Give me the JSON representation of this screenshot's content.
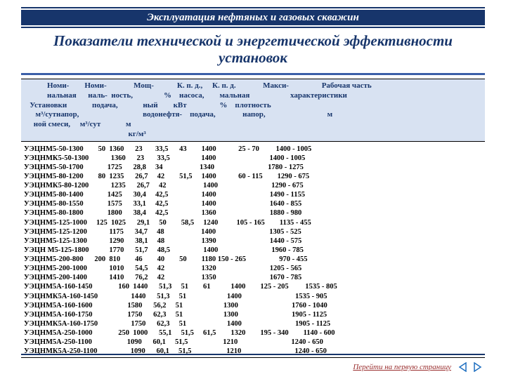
{
  "colors": {
    "brand": "#17356b",
    "header_bg": "#d8e2f2",
    "accent": "#3b5fa8",
    "link": "#9a2f2f",
    "nav": "#1f6fc0"
  },
  "header_title": "Эксплуатация нефтяных и газовых скважин",
  "page_title": "Показатели технической и энергетической эффективности установок",
  "footer_link": "Перейти на первую страницу",
  "table": {
    "type": "table",
    "header_lines": [
      "            Номи-        Номи-              Мощ-            К. п. д.,     К. п. д.              Макси-                 Рабочая часть",
      "            нальная      наль-  ность,                %    насоса,        мальная                     характеристики",
      "   Установки             подача,             ный        кВт                 %    плотность",
      "      м³/сутнапор,                                 водонефтя-    подача,              напор,                                м",
      "     ной смеси,     м³/сут             м",
      "                                                      кг/м³"
    ],
    "rows": [
      "УЭЦНМ5-50-1300        50  1360      23       33,5      43        1400            25 - 70         1400 - 1005",
      "УЭЦНМК5-50-1300            1360      23       33,5                 1400                             1400 - 1005",
      "УЭЦНМ5-50-1700             1725      28,8     34                    1340                             1780 - 1275",
      "УЭЦНМ5-80-1200        80  1235      26,7     42        51,5     1400            60 - 115        1290 - 675",
      "УЭЦНМК5-80-1200            1235      26,7     42                    1400                             1290 - 675",
      "УЭЦНМ5-80-1400             1425      30,4     42,5                  1400                             1490 - 1155",
      "УЭЦНМ5-80-1550             1575      33,1     42,5                  1400                             1640 - 855",
      "УЭЦНМ5-80-1800             1800      38,4     42,5                  1360                             1880 - 980",
      "УЭЦНМ5-125-1000     125  1025      29,1     50        58,5     1240          105 - 165        1135 - 455",
      "УЭЦНМ5-125-1200            1175      34,7     48                    1400                             1305 - 525",
      "УЭЦНМ5-125-1300            1290      38,1     48                    1390                             1440 - 575",
      "УЭЦН М5-125-1800           1770      51,7     48,5                  1400                             1960 - 785",
      "УЭЦНМ5-200-800      200  810        46        40        50        1180 150 - 265                  970 - 455",
      "УЭЦНМ5-200-1000            1010      54,5     42                    1320                             1205 - 565",
      "УЭЦНМ5-200-1400            1410      76,2     42                    1350                             1670 - 785",
      "УЭЦНМ5А-160-1450              160  1440      51,3     51        61           1400        125 - 205         1535 - 805",
      "УЭЦНМК5А-160-1450                  1440      51,3     51                      1400                             1535 - 905",
      "УЭЦНМ5А-160-1600                   1580      56,2     51                      1300                             1760 - 1040",
      "УЭЦНМ5А-160-1750                   1750      62,3     51                      1300                             1905 - 1125",
      "УЭЦНМК5А-160-1750                  1750      62,3     51                      1400                             1905 - 1125",
      "УЭЦНМ5А-250-1000              250  1000      55,1     51,5     61,5        1320        195 - 340        1140 - 600",
      "УЭЦНМ5А-250-1100                   1090      60,1     51,5                   1210                             1240 - 650",
      "УЭЦНМК5А-250-1100                  1090      60,1     51,5                   1210                             1240 - 650"
    ]
  }
}
